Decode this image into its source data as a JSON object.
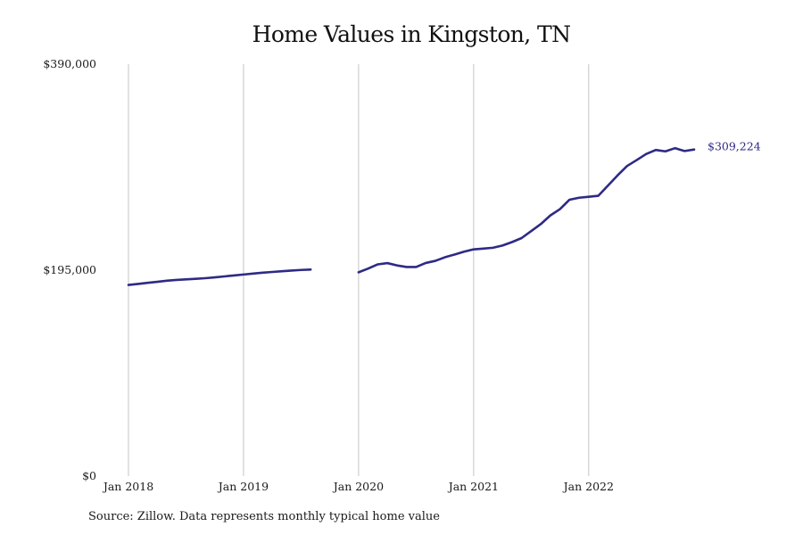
{
  "chart_data": {
    "type": "line",
    "title": "Home Values in Kingston, TN",
    "xlabel": "",
    "ylabel": "",
    "ylim": [
      0,
      390000
    ],
    "xlim": [
      "2018-01",
      "2022-12"
    ],
    "y_ticks": [
      {
        "value": 0,
        "label": "$0"
      },
      {
        "value": 195000,
        "label": "$195,000"
      },
      {
        "value": 390000,
        "label": "$390,000"
      }
    ],
    "x_ticks": [
      {
        "value": "2018-01",
        "label": "Jan 2018"
      },
      {
        "value": "2019-01",
        "label": "Jan 2019"
      },
      {
        "value": "2020-01",
        "label": "Jan 2020"
      },
      {
        "value": "2021-01",
        "label": "Jan 2021"
      },
      {
        "value": "2022-01",
        "label": "Jan 2022"
      }
    ],
    "grid": "vertical lines at x ticks",
    "line_color": "#2e2a85",
    "end_label": "$309,224",
    "series": [
      {
        "segments": [
          [
            [
              "2018-01",
              181000
            ],
            [
              "2018-02",
              182000
            ],
            [
              "2018-03",
              183000
            ],
            [
              "2018-04",
              184000
            ],
            [
              "2018-05",
              185000
            ],
            [
              "2018-06",
              185800
            ],
            [
              "2018-07",
              186300
            ],
            [
              "2018-08",
              186800
            ],
            [
              "2018-09",
              187400
            ],
            [
              "2018-10",
              188200
            ],
            [
              "2018-11",
              189100
            ],
            [
              "2018-12",
              190000
            ],
            [
              "2019-01",
              190900
            ],
            [
              "2019-02",
              191800
            ],
            [
              "2019-03",
              192600
            ],
            [
              "2019-04",
              193300
            ],
            [
              "2019-05",
              194000
            ],
            [
              "2019-06",
              194600
            ],
            [
              "2019-07",
              195200
            ],
            [
              "2019-08",
              195600
            ]
          ],
          [
            [
              "2020-01",
              193000
            ],
            [
              "2020-02",
              196500
            ],
            [
              "2020-03",
              200500
            ],
            [
              "2020-04",
              201700
            ],
            [
              "2020-05",
              199500
            ],
            [
              "2020-06",
              198000
            ],
            [
              "2020-07",
              198000
            ],
            [
              "2020-08",
              201800
            ],
            [
              "2020-09",
              203800
            ],
            [
              "2020-10",
              207200
            ],
            [
              "2020-11",
              209800
            ],
            [
              "2020-12",
              212500
            ],
            [
              "2021-01",
              214700
            ],
            [
              "2021-02",
              215400
            ],
            [
              "2021-03",
              216200
            ],
            [
              "2021-04",
              218300
            ],
            [
              "2021-05",
              221600
            ],
            [
              "2021-06",
              225400
            ],
            [
              "2021-07",
              232000
            ],
            [
              "2021-08",
              238600
            ],
            [
              "2021-09",
              246800
            ],
            [
              "2021-10",
              252800
            ],
            [
              "2021-11",
              261700
            ],
            [
              "2021-12",
              263600
            ],
            [
              "2022-01",
              264500
            ],
            [
              "2022-02",
              265400
            ],
            [
              "2022-03",
              275000
            ],
            [
              "2022-04",
              284600
            ],
            [
              "2022-05",
              293600
            ],
            [
              "2022-06",
              299200
            ],
            [
              "2022-07",
              305000
            ],
            [
              "2022-08",
              308800
            ],
            [
              "2022-09",
              307500
            ],
            [
              "2022-10",
              310500
            ],
            [
              "2022-11",
              307800
            ],
            [
              "2022-12",
              309224
            ]
          ]
        ]
      }
    ]
  },
  "footer": {
    "source": "Source: Zillow. Data represents monthly typical home value"
  }
}
